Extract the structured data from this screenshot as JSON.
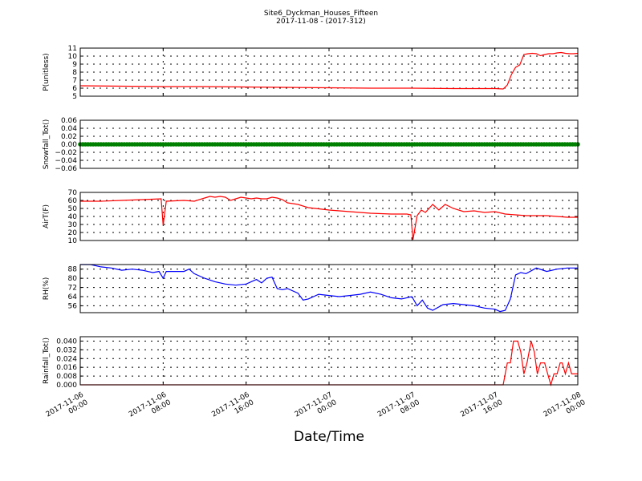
{
  "chart_data": {
    "type": "line",
    "title": "Site6_Dyckman_Houses_Fifteen",
    "subtitle": "2017-11-08 - (2017-312)",
    "xlabel": "Date/Time",
    "x_ticks": [
      {
        "pos": 0,
        "line1": "2017-11-06",
        "line2": "00:00"
      },
      {
        "pos": 8,
        "line1": "2017-11-06",
        "line2": "08:00"
      },
      {
        "pos": 16,
        "line1": "2017-11-06",
        "line2": "16:00"
      },
      {
        "pos": 24,
        "line1": "2017-11-07",
        "line2": "00:00"
      },
      {
        "pos": 32,
        "line1": "2017-11-07",
        "line2": "08:00"
      },
      {
        "pos": 40,
        "line1": "2017-11-07",
        "line2": "16:00"
      },
      {
        "pos": 48,
        "line1": "2017-11-08",
        "line2": "00:00"
      }
    ],
    "xlim": [
      0,
      48
    ],
    "x_unit": "hours since 2017-11-06 00:00",
    "grid": true,
    "panels": [
      {
        "ylabel": "P(unitless)",
        "ylim": [
          5,
          11
        ],
        "yticks": [
          5,
          6,
          7,
          8,
          9,
          10,
          11
        ],
        "ytick_labels": [
          "5",
          "6",
          "7",
          "8",
          "9",
          "10",
          "11"
        ],
        "color": "#ff0000",
        "marker": false,
        "x": [
          0,
          4,
          8,
          12,
          16,
          20,
          24,
          28,
          32,
          36,
          40,
          40.8,
          41.2,
          41.6,
          42.0,
          42.4,
          42.8,
          43.2,
          43.6,
          44.0,
          44.4,
          44.8,
          45.2,
          45.6,
          46.0,
          46.4,
          46.8,
          47.2,
          47.6,
          48
        ],
        "y": [
          6.3,
          6.25,
          6.2,
          6.2,
          6.15,
          6.1,
          6.05,
          6.0,
          6.0,
          5.95,
          5.95,
          5.9,
          6.4,
          7.7,
          8.6,
          8.9,
          10.2,
          10.3,
          10.35,
          10.3,
          10.05,
          10.2,
          10.3,
          10.3,
          10.4,
          10.45,
          10.35,
          10.3,
          10.3,
          10.35
        ]
      },
      {
        "ylabel": "Snowfall_Tot()",
        "ylim": [
          -0.06,
          0.06
        ],
        "yticks": [
          -0.06,
          -0.04,
          -0.02,
          0.0,
          0.02,
          0.04,
          0.06
        ],
        "ytick_labels": [
          "−0.06",
          "−0.04",
          "−0.02",
          "0.00",
          "0.02",
          "0.04",
          "0.06"
        ],
        "color": "#008000",
        "marker": true,
        "x": [
          0,
          48
        ],
        "y": [
          0.0,
          0.0
        ]
      },
      {
        "ylabel": "AirT(F)",
        "ylim": [
          10,
          70
        ],
        "yticks": [
          10,
          20,
          30,
          40,
          50,
          60,
          70
        ],
        "ytick_labels": [
          "10",
          "20",
          "30",
          "40",
          "50",
          "60",
          "70"
        ],
        "color": "#ff0000",
        "marker": false,
        "x": [
          0,
          2,
          4,
          6,
          7.8,
          8.0,
          8.3,
          10,
          11,
          12,
          12.5,
          13,
          13.5,
          14,
          14.5,
          15,
          15.5,
          16,
          16.5,
          17,
          17.5,
          18,
          18.5,
          19,
          19.5,
          20,
          21,
          22,
          24,
          26,
          28,
          30,
          31.5,
          31.9,
          32.1,
          32.5,
          32.9,
          33.3,
          34,
          34.6,
          35.2,
          36,
          37,
          38,
          39,
          40,
          41,
          42,
          43,
          44,
          45,
          46,
          47,
          48
        ],
        "y": [
          59,
          59,
          60,
          61,
          62,
          29,
          59,
          60,
          59,
          63,
          65,
          64,
          65,
          64,
          60,
          62,
          64,
          63,
          62,
          63,
          62,
          62,
          64,
          63,
          61,
          57,
          55,
          51,
          48,
          46,
          44,
          43,
          43,
          42,
          11,
          41,
          48,
          45,
          55,
          48,
          55,
          50,
          46,
          47,
          45,
          46,
          43,
          42,
          41,
          41,
          41,
          40,
          39,
          39
        ]
      },
      {
        "ylabel": "RH(%)",
        "ylim": [
          50,
          92
        ],
        "yticks": [
          56,
          64,
          72,
          80,
          88
        ],
        "ytick_labels": [
          "56",
          "64",
          "72",
          "80",
          "88"
        ],
        "color": "#0000ff",
        "marker": false,
        "x": [
          0,
          1,
          2,
          3,
          4,
          5,
          6,
          7,
          7.6,
          8.0,
          8.3,
          9,
          10,
          10.5,
          11,
          12,
          13,
          14,
          15,
          16,
          17,
          17.5,
          18,
          18.5,
          19,
          19.5,
          20,
          21,
          21.5,
          22,
          23,
          24,
          25,
          26,
          27,
          28,
          29,
          30,
          31,
          32,
          32.5,
          33,
          33.5,
          34,
          35,
          36,
          37,
          38,
          39,
          40,
          40.5,
          41,
          41.5,
          42,
          42.5,
          43,
          44,
          45,
          46,
          47,
          48
        ],
        "y": [
          92,
          92,
          90,
          89,
          87,
          88,
          87,
          85,
          86,
          80,
          86,
          86,
          86,
          88,
          84,
          80,
          77,
          75,
          74,
          75,
          79,
          76,
          80,
          81,
          71,
          70,
          71,
          67,
          61,
          62,
          66,
          65,
          64,
          65,
          66,
          68,
          66,
          63,
          62,
          64,
          56,
          61,
          54,
          52,
          57,
          58,
          57,
          56,
          54,
          53,
          51,
          52,
          62,
          83,
          85,
          84,
          89,
          86,
          88,
          89,
          89
        ]
      },
      {
        "ylabel": "Rainfall_Tot()",
        "ylim": [
          0,
          0.044
        ],
        "yticks": [
          0.0,
          0.008,
          0.016,
          0.024,
          0.032,
          0.04
        ],
        "ytick_labels": [
          "0.000",
          "0.008",
          "0.016",
          "0.024",
          "0.032",
          "0.040"
        ],
        "color": "#ff0000",
        "marker": false,
        "x": [
          0,
          40.8,
          41.2,
          41.5,
          41.8,
          42.2,
          42.5,
          42.8,
          43.1,
          43.5,
          43.8,
          44.1,
          44.4,
          44.8,
          45.1,
          45.4,
          45.7,
          46.0,
          46.3,
          46.5,
          46.8,
          47.1,
          47.4,
          47.7,
          48
        ],
        "y": [
          0.0,
          0.0,
          0.02,
          0.02,
          0.04,
          0.04,
          0.03,
          0.01,
          0.02,
          0.04,
          0.03,
          0.01,
          0.02,
          0.02,
          0.01,
          0.0,
          0.01,
          0.01,
          0.02,
          0.02,
          0.01,
          0.02,
          0.01,
          0.01,
          0.01
        ]
      }
    ]
  }
}
